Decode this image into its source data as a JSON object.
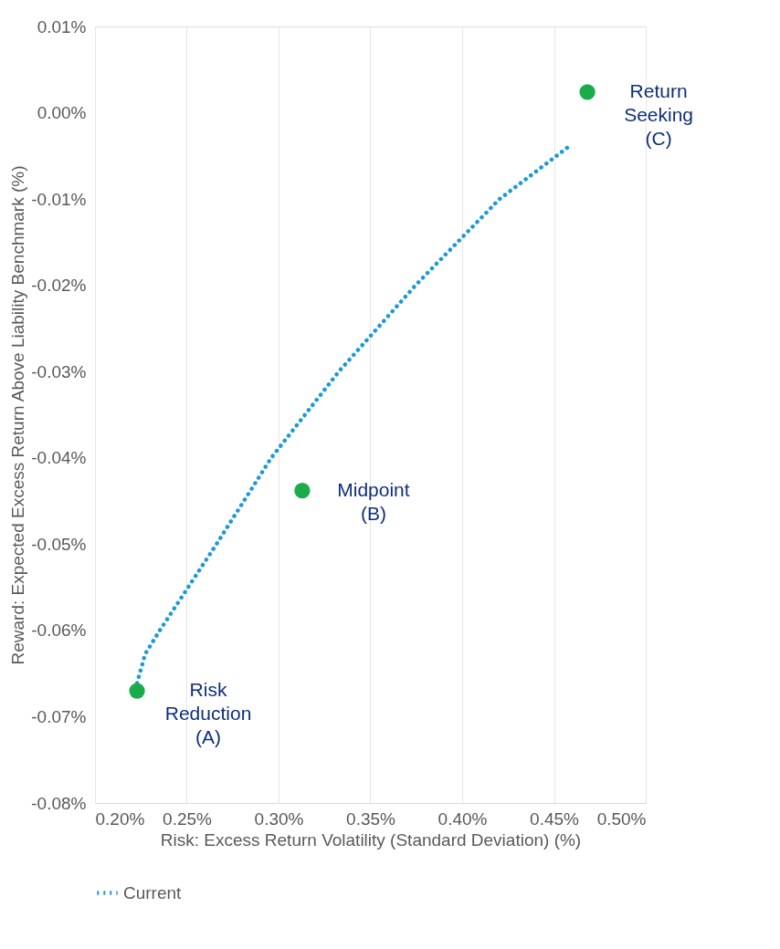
{
  "chart_data": {
    "type": "line",
    "xlabel": "Risk: Excess Return Volatility (Standard Deviation) (%)",
    "ylabel": "Reward: Expected Excess Return Above Liability Benchmark (%)",
    "xlim": [
      0.2,
      0.5
    ],
    "ylim": [
      -0.08,
      0.01
    ],
    "xticks": [
      {
        "value": 0.2,
        "label": "0.20%"
      },
      {
        "value": 0.25,
        "label": "0.25%"
      },
      {
        "value": 0.3,
        "label": "0.30%"
      },
      {
        "value": 0.35,
        "label": "0.35%"
      },
      {
        "value": 0.4,
        "label": "0.40%"
      },
      {
        "value": 0.45,
        "label": "0.45%"
      },
      {
        "value": 0.5,
        "label": "0.50%"
      }
    ],
    "yticks": [
      {
        "value": 0.01,
        "label": "0.01%"
      },
      {
        "value": 0,
        "label": "0.00%"
      },
      {
        "value": -0.01,
        "label": "-0.01%"
      },
      {
        "value": -0.02,
        "label": "-0.02%"
      },
      {
        "value": -0.03,
        "label": "-0.03%"
      },
      {
        "value": -0.04,
        "label": "-0.04%"
      },
      {
        "value": -0.05,
        "label": "-0.05%"
      },
      {
        "value": -0.06,
        "label": "-0.06%"
      },
      {
        "value": -0.07,
        "label": "-0.07%"
      },
      {
        "value": -0.08,
        "label": "-0.08%"
      }
    ],
    "grid": "x",
    "legend": "bottom",
    "line_style": "dotted",
    "series": [
      {
        "name": "Current",
        "color": "#1b9ad6",
        "x": [
          0.2229,
          0.2274,
          0.2353,
          0.2662,
          0.296,
          0.3328,
          0.3746,
          0.4204,
          0.4582
        ],
        "values": [
          -0.0661,
          -0.0627,
          -0.06,
          -0.05,
          -0.04,
          -0.03,
          -0.02,
          -0.01,
          -0.0039
        ]
      },
      {
        "type": "scatter",
        "color": "#1aab4b",
        "marker": "circle",
        "x": [
          0.2229,
          0.3129,
          0.4682
        ],
        "values": [
          -0.067,
          -0.0438,
          0.0024
        ]
      }
    ],
    "annotations": [
      {
        "text": "Risk\nReduction\n(A)",
        "x": 0.2229,
        "y": -0.067
      },
      {
        "text": "Midpoint\n(B)",
        "x": 0.3129,
        "y": -0.0438
      },
      {
        "text": "Return\nSeeking\n(C)",
        "x": 0.4682,
        "y": 0.0024
      }
    ]
  }
}
